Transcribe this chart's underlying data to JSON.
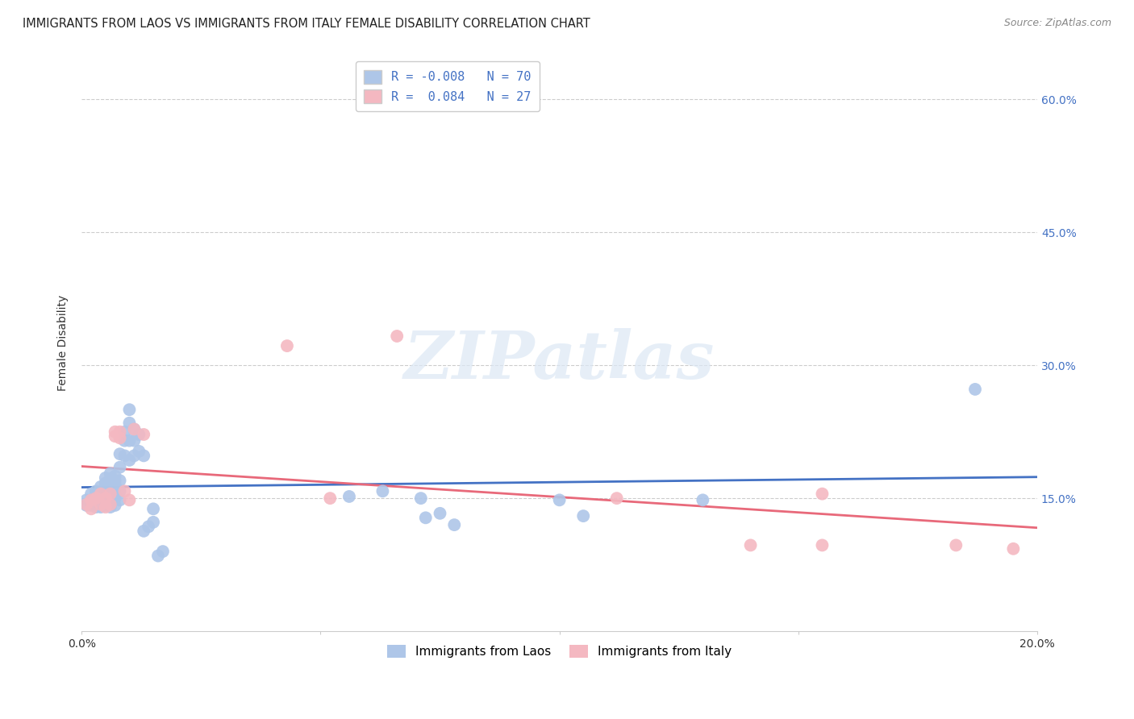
{
  "title": "IMMIGRANTS FROM LAOS VS IMMIGRANTS FROM ITALY FEMALE DISABILITY CORRELATION CHART",
  "source": "Source: ZipAtlas.com",
  "ylabel": "Female Disability",
  "xlim": [
    0.0,
    0.2
  ],
  "ylim": [
    0.0,
    0.65
  ],
  "yticks": [
    0.15,
    0.3,
    0.45,
    0.6
  ],
  "ytick_labels": [
    "15.0%",
    "30.0%",
    "45.0%",
    "60.0%"
  ],
  "xticks": [
    0.0,
    0.05,
    0.1,
    0.15,
    0.2
  ],
  "xtick_labels": [
    "0.0%",
    "",
    "",
    "",
    "20.0%"
  ],
  "grid_color": "#cccccc",
  "background_color": "#ffffff",
  "laos_color": "#aec6e8",
  "italy_color": "#f4b8c1",
  "laos_line_color": "#4472c4",
  "italy_line_color": "#e8697a",
  "legend_laos_label": "Immigrants from Laos",
  "legend_italy_label": "Immigrants from Italy",
  "R_laos": -0.008,
  "N_laos": 70,
  "R_italy": 0.084,
  "N_italy": 27,
  "laos_x": [
    0.001,
    0.001,
    0.002,
    0.002,
    0.002,
    0.003,
    0.003,
    0.003,
    0.003,
    0.004,
    0.004,
    0.004,
    0.004,
    0.004,
    0.005,
    0.005,
    0.005,
    0.005,
    0.005,
    0.005,
    0.005,
    0.006,
    0.006,
    0.006,
    0.006,
    0.006,
    0.006,
    0.006,
    0.006,
    0.007,
    0.007,
    0.007,
    0.007,
    0.007,
    0.007,
    0.007,
    0.008,
    0.008,
    0.008,
    0.008,
    0.008,
    0.009,
    0.009,
    0.009,
    0.01,
    0.01,
    0.01,
    0.01,
    0.011,
    0.011,
    0.011,
    0.012,
    0.012,
    0.013,
    0.013,
    0.014,
    0.015,
    0.015,
    0.016,
    0.017,
    0.056,
    0.063,
    0.071,
    0.072,
    0.075,
    0.078,
    0.1,
    0.105,
    0.13,
    0.187
  ],
  "laos_y": [
    0.148,
    0.142,
    0.155,
    0.148,
    0.142,
    0.158,
    0.152,
    0.147,
    0.14,
    0.163,
    0.157,
    0.152,
    0.147,
    0.14,
    0.173,
    0.167,
    0.162,
    0.157,
    0.152,
    0.147,
    0.142,
    0.178,
    0.172,
    0.167,
    0.162,
    0.157,
    0.152,
    0.147,
    0.14,
    0.175,
    0.17,
    0.165,
    0.16,
    0.155,
    0.15,
    0.142,
    0.2,
    0.185,
    0.17,
    0.158,
    0.148,
    0.225,
    0.215,
    0.198,
    0.25,
    0.235,
    0.215,
    0.193,
    0.228,
    0.215,
    0.198,
    0.222,
    0.203,
    0.198,
    0.113,
    0.118,
    0.138,
    0.123,
    0.085,
    0.09,
    0.152,
    0.158,
    0.15,
    0.128,
    0.133,
    0.12,
    0.148,
    0.13,
    0.148,
    0.273
  ],
  "italy_x": [
    0.001,
    0.002,
    0.002,
    0.003,
    0.004,
    0.004,
    0.005,
    0.005,
    0.006,
    0.006,
    0.007,
    0.007,
    0.008,
    0.008,
    0.009,
    0.01,
    0.011,
    0.013,
    0.043,
    0.052,
    0.066,
    0.112,
    0.14,
    0.155,
    0.155,
    0.183,
    0.195
  ],
  "italy_y": [
    0.143,
    0.148,
    0.138,
    0.15,
    0.155,
    0.143,
    0.15,
    0.14,
    0.155,
    0.143,
    0.225,
    0.22,
    0.225,
    0.218,
    0.158,
    0.148,
    0.228,
    0.222,
    0.322,
    0.15,
    0.333,
    0.15,
    0.097,
    0.155,
    0.097,
    0.097,
    0.093
  ],
  "watermark": "ZIPatlas",
  "title_fontsize": 10.5,
  "axis_label_fontsize": 10,
  "tick_fontsize": 10,
  "legend_fontsize": 11,
  "source_fontsize": 9
}
